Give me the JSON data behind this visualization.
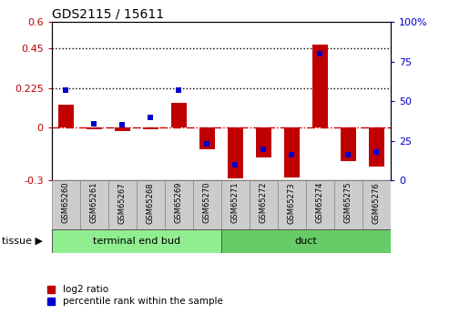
{
  "title": "GDS2115 / 15611",
  "samples": [
    "GSM65260",
    "GSM65261",
    "GSM65267",
    "GSM65268",
    "GSM65269",
    "GSM65270",
    "GSM65271",
    "GSM65272",
    "GSM65273",
    "GSM65274",
    "GSM65275",
    "GSM65276"
  ],
  "log2_ratio": [
    0.13,
    -0.01,
    -0.02,
    -0.01,
    0.14,
    -0.12,
    -0.29,
    -0.17,
    -0.28,
    0.47,
    -0.19,
    -0.22
  ],
  "percentile_rank": [
    57,
    36,
    35,
    40,
    57,
    23,
    10,
    20,
    16,
    80,
    16,
    18
  ],
  "tissue_groups": [
    {
      "label": "terminal end bud",
      "start": 0,
      "end": 6,
      "color": "#90EE90"
    },
    {
      "label": "duct",
      "start": 6,
      "end": 12,
      "color": "#66CC66"
    }
  ],
  "ylim_left": [
    -0.3,
    0.6
  ],
  "ylim_right": [
    0,
    100
  ],
  "yticks_left": [
    -0.3,
    0,
    0.225,
    0.45,
    0.6
  ],
  "ytick_labels_left": [
    "-0.3",
    "0",
    "0.225",
    "0.45",
    "0.6"
  ],
  "yticks_right": [
    0,
    25,
    50,
    75,
    100
  ],
  "ytick_labels_right": [
    "0",
    "25",
    "50",
    "75",
    "100%"
  ],
  "hlines": [
    0.45,
    0.225
  ],
  "bar_color_red": "#C00000",
  "bar_color_blue": "#0000CC",
  "zero_line_color": "#CC0000",
  "bg_color": "#ffffff",
  "legend_red_label": "log2 ratio",
  "legend_blue_label": "percentile rank within the sample",
  "tissue_label": "tissue",
  "bar_width": 0.55,
  "blue_marker_size": 5
}
